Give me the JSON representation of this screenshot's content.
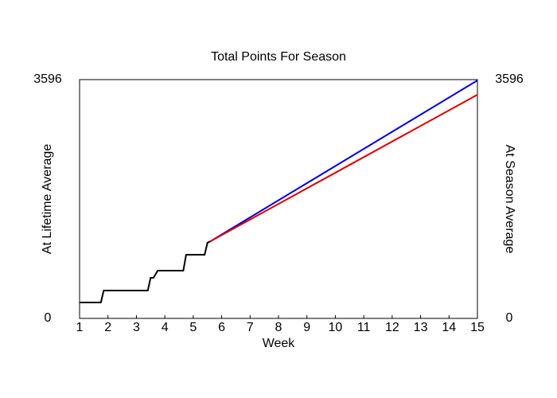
{
  "chart_data": {
    "type": "line",
    "title": "Total Points For Season",
    "xlabel": "Week",
    "ylabel": "At Lifetime Average",
    "y2label": "At Season Average",
    "xlim": [
      1,
      15
    ],
    "xticks": [
      1,
      2,
      3,
      4,
      5,
      6,
      7,
      8,
      9,
      10,
      11,
      12,
      13,
      14,
      15
    ],
    "ylim": [
      0,
      3596
    ],
    "yticks": [
      0,
      3596
    ],
    "y2lim": [
      0,
      3596
    ],
    "y2ticks": [
      0,
      3596
    ],
    "ylabel_color": "#0000cc",
    "y2label_color": "#dd0000",
    "series": [
      {
        "color": "#000000",
        "x": [
          1,
          1.75,
          1.85,
          3.4,
          3.5,
          3.6,
          3.75,
          4.65,
          4.75,
          5.4,
          5.5,
          5.6
        ],
        "values": [
          240,
          240,
          420,
          420,
          611,
          611,
          719,
          719,
          959,
          959,
          1139,
          1160
        ]
      },
      {
        "color": "#0000dd",
        "x": [
          5.6,
          15
        ],
        "values": [
          1160,
          3584
        ]
      },
      {
        "color": "#dd0000",
        "axis": "y2",
        "x": [
          5.6,
          15
        ],
        "values": [
          1160,
          3368
        ]
      }
    ]
  }
}
